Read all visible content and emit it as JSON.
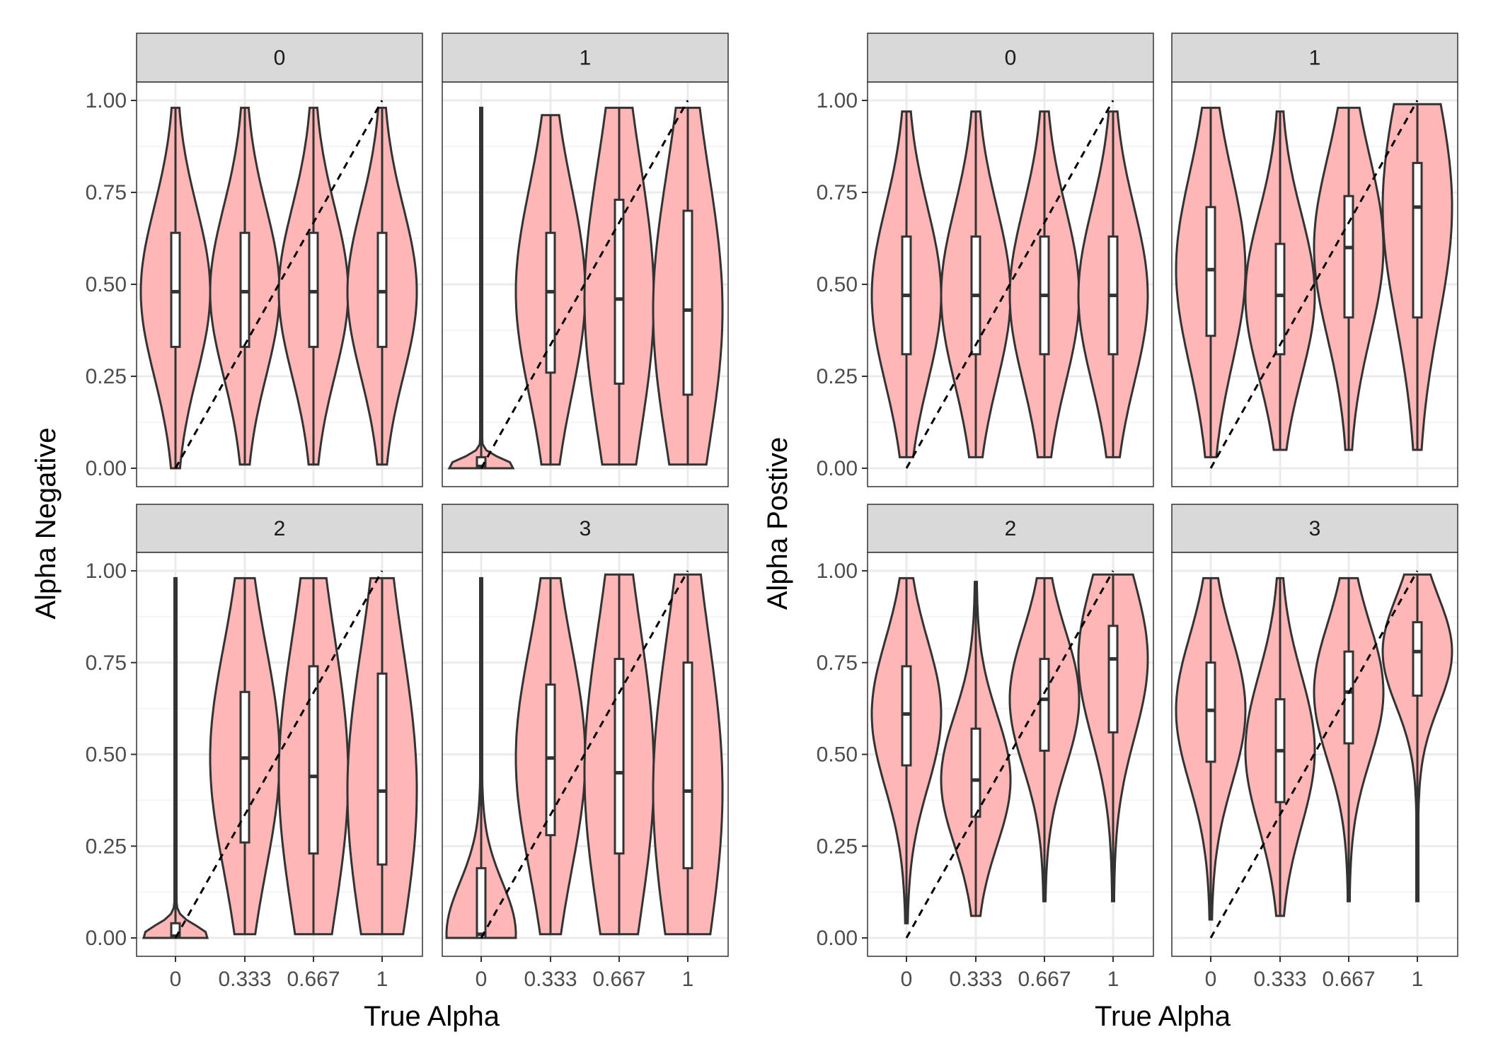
{
  "figure": {
    "left": {
      "ylabel": "Alpha Negative",
      "xlabel": "True Alpha",
      "facet_labels": [
        "0",
        "1",
        "2",
        "3"
      ]
    },
    "right": {
      "ylabel": "Alpha Postive",
      "xlabel": "True Alpha",
      "facet_labels": [
        "0",
        "1",
        "2",
        "3"
      ]
    }
  },
  "colors": {
    "violin_fill": "#ffb6b6",
    "outline": "#333333",
    "strip_bg": "#d9d9d9",
    "grid": "#ebebeb"
  },
  "chart_data": [
    {
      "type": "violin",
      "title": "",
      "ylabel": "Alpha Negative",
      "xlabel": "True Alpha",
      "categories": [
        "0",
        "0.333",
        "0.667",
        "1"
      ],
      "yticks": [
        "0.00",
        "0.25",
        "0.50",
        "0.75",
        "1.00"
      ],
      "ylim": [
        0,
        1
      ],
      "reference_line": "y = x (dashed)",
      "facets": [
        {
          "label": "0",
          "groups": [
            {
              "x": "0",
              "min": 0.0,
              "max": 0.98,
              "q1": 0.33,
              "median": 0.48,
              "q3": 0.64
            },
            {
              "x": "0.333",
              "min": 0.01,
              "max": 0.98,
              "q1": 0.33,
              "median": 0.48,
              "q3": 0.64
            },
            {
              "x": "0.667",
              "min": 0.01,
              "max": 0.98,
              "q1": 0.33,
              "median": 0.48,
              "q3": 0.64
            },
            {
              "x": "1",
              "min": 0.01,
              "max": 0.98,
              "q1": 0.33,
              "median": 0.48,
              "q3": 0.64
            }
          ]
        },
        {
          "label": "1",
          "groups": [
            {
              "x": "0",
              "min": 0.0,
              "max": 0.98,
              "q1": 0.0,
              "median": 0.005,
              "q3": 0.03
            },
            {
              "x": "0.333",
              "min": 0.01,
              "max": 0.96,
              "q1": 0.26,
              "median": 0.48,
              "q3": 0.64
            },
            {
              "x": "0.667",
              "min": 0.01,
              "max": 0.98,
              "q1": 0.23,
              "median": 0.46,
              "q3": 0.73
            },
            {
              "x": "1",
              "min": 0.01,
              "max": 0.98,
              "q1": 0.2,
              "median": 0.43,
              "q3": 0.7
            }
          ]
        },
        {
          "label": "2",
          "groups": [
            {
              "x": "0",
              "min": 0.0,
              "max": 0.98,
              "q1": 0.0,
              "median": 0.005,
              "q3": 0.04
            },
            {
              "x": "0.333",
              "min": 0.01,
              "max": 0.98,
              "q1": 0.26,
              "median": 0.49,
              "q3": 0.67
            },
            {
              "x": "0.667",
              "min": 0.01,
              "max": 0.98,
              "q1": 0.23,
              "median": 0.44,
              "q3": 0.74
            },
            {
              "x": "1",
              "min": 0.01,
              "max": 0.98,
              "q1": 0.2,
              "median": 0.4,
              "q3": 0.72
            }
          ]
        },
        {
          "label": "3",
          "groups": [
            {
              "x": "0",
              "min": 0.0,
              "max": 0.98,
              "q1": 0.0,
              "median": 0.01,
              "q3": 0.19
            },
            {
              "x": "0.333",
              "min": 0.01,
              "max": 0.98,
              "q1": 0.28,
              "median": 0.49,
              "q3": 0.69
            },
            {
              "x": "0.667",
              "min": 0.01,
              "max": 0.99,
              "q1": 0.23,
              "median": 0.45,
              "q3": 0.76
            },
            {
              "x": "1",
              "min": 0.01,
              "max": 0.99,
              "q1": 0.19,
              "median": 0.4,
              "q3": 0.75
            }
          ]
        }
      ]
    },
    {
      "type": "violin",
      "title": "",
      "ylabel": "Alpha Postive",
      "xlabel": "True Alpha",
      "categories": [
        "0",
        "0.333",
        "0.667",
        "1"
      ],
      "yticks": [
        "0.00",
        "0.25",
        "0.50",
        "0.75",
        "1.00"
      ],
      "ylim": [
        0,
        1
      ],
      "reference_line": "y = x (dashed)",
      "facets": [
        {
          "label": "0",
          "groups": [
            {
              "x": "0",
              "min": 0.03,
              "max": 0.97,
              "q1": 0.31,
              "median": 0.47,
              "q3": 0.63
            },
            {
              "x": "0.333",
              "min": 0.03,
              "max": 0.97,
              "q1": 0.31,
              "median": 0.47,
              "q3": 0.63
            },
            {
              "x": "0.667",
              "min": 0.03,
              "max": 0.97,
              "q1": 0.31,
              "median": 0.47,
              "q3": 0.63
            },
            {
              "x": "1",
              "min": 0.03,
              "max": 0.97,
              "q1": 0.31,
              "median": 0.47,
              "q3": 0.63
            }
          ]
        },
        {
          "label": "1",
          "groups": [
            {
              "x": "0",
              "min": 0.03,
              "max": 0.98,
              "q1": 0.36,
              "median": 0.54,
              "q3": 0.71
            },
            {
              "x": "0.333",
              "min": 0.05,
              "max": 0.97,
              "q1": 0.31,
              "median": 0.47,
              "q3": 0.61
            },
            {
              "x": "0.667",
              "min": 0.05,
              "max": 0.98,
              "q1": 0.41,
              "median": 0.6,
              "q3": 0.74
            },
            {
              "x": "1",
              "min": 0.05,
              "max": 0.99,
              "q1": 0.41,
              "median": 0.71,
              "q3": 0.83
            }
          ]
        },
        {
          "label": "2",
          "groups": [
            {
              "x": "0",
              "min": 0.04,
              "max": 0.98,
              "q1": 0.47,
              "median": 0.61,
              "q3": 0.74
            },
            {
              "x": "0.333",
              "min": 0.06,
              "max": 0.97,
              "q1": 0.33,
              "median": 0.43,
              "q3": 0.57
            },
            {
              "x": "0.667",
              "min": 0.1,
              "max": 0.98,
              "q1": 0.51,
              "median": 0.65,
              "q3": 0.76
            },
            {
              "x": "1",
              "min": 0.1,
              "max": 0.99,
              "q1": 0.56,
              "median": 0.76,
              "q3": 0.85
            }
          ]
        },
        {
          "label": "3",
          "groups": [
            {
              "x": "0",
              "min": 0.05,
              "max": 0.98,
              "q1": 0.48,
              "median": 0.62,
              "q3": 0.75
            },
            {
              "x": "0.333",
              "min": 0.06,
              "max": 0.98,
              "q1": 0.37,
              "median": 0.51,
              "q3": 0.65
            },
            {
              "x": "0.667",
              "min": 0.1,
              "max": 0.98,
              "q1": 0.53,
              "median": 0.67,
              "q3": 0.78
            },
            {
              "x": "1",
              "min": 0.1,
              "max": 0.99,
              "q1": 0.66,
              "median": 0.78,
              "q3": 0.86
            }
          ]
        }
      ]
    }
  ]
}
